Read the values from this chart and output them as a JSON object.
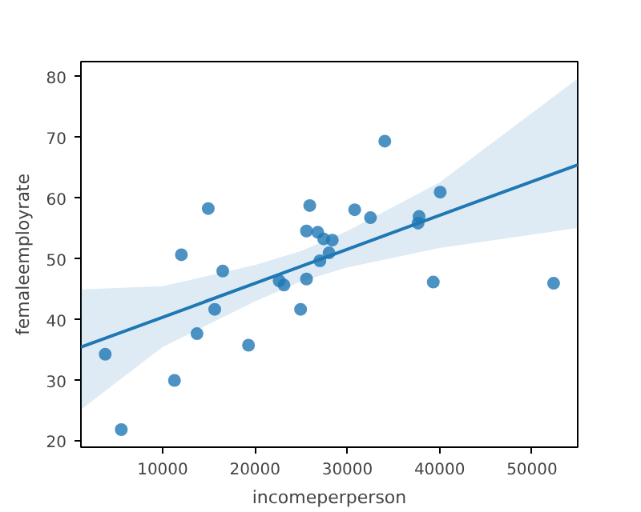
{
  "chart_data": {
    "type": "scatter",
    "xlabel": "incomeperperson",
    "ylabel": "femaleemployrate",
    "xlim": [
      1150,
      54950
    ],
    "ylim": [
      19,
      82.5
    ],
    "xticks": [
      10000,
      20000,
      30000,
      40000,
      50000
    ],
    "yticks": [
      20,
      30,
      40,
      50,
      60,
      70,
      80
    ],
    "grid": false,
    "series": [
      {
        "marker": "circle",
        "color": "#1f77b4",
        "x": [
          3780,
          5520,
          11280,
          12030,
          14940,
          13720,
          15640,
          16510,
          19300,
          22620,
          23140,
          24940,
          25930,
          25580,
          25580,
          26800,
          27030,
          27440,
          28370,
          28020,
          30800,
          32510,
          34060,
          37770,
          37660,
          40060,
          39310,
          52340
        ],
        "values": [
          34.3,
          21.9,
          30.0,
          50.7,
          58.3,
          37.7,
          41.7,
          48.0,
          35.8,
          46.4,
          45.7,
          41.7,
          58.8,
          54.6,
          46.7,
          54.4,
          49.7,
          53.3,
          53.1,
          51.0,
          58.1,
          56.8,
          69.4,
          57.0,
          55.9,
          61.0,
          46.2,
          46.0
        ]
      },
      {
        "type": "line",
        "color": "#1f77b4",
        "line_style": "solid",
        "x": [
          1150,
          10000,
          20000,
          25000,
          30000,
          40000,
          54950
        ],
        "values": [
          35.5,
          40.4,
          46.0,
          48.8,
          51.6,
          57.2,
          65.5
        ],
        "lower": [
          25.2,
          35.5,
          43.0,
          46.3,
          48.6,
          51.8,
          55.1
        ],
        "upper": [
          45.0,
          45.5,
          49.0,
          51.3,
          54.6,
          62.6,
          79.7
        ]
      }
    ]
  }
}
